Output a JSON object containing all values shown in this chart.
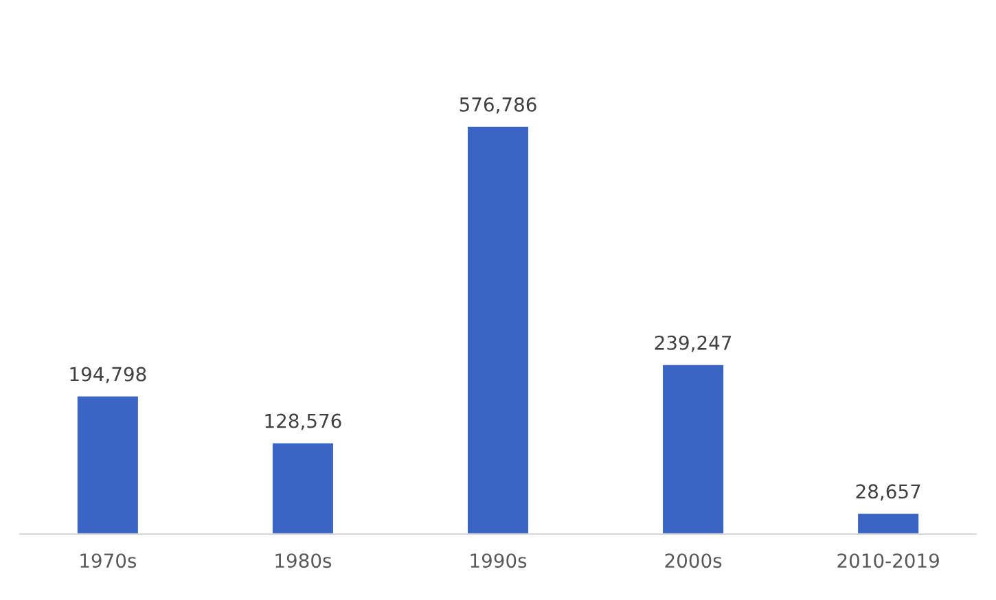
{
  "chart_data": {
    "type": "bar",
    "categories": [
      "1970s",
      "1980s",
      "1990s",
      "2000s",
      "2010-2019"
    ],
    "values": [
      194798,
      128576,
      576786,
      239247,
      28657
    ],
    "value_labels": [
      "194,798",
      "128,576",
      "576,786",
      "239,247",
      "28,657"
    ],
    "color": "#3a65c4",
    "grid": false,
    "legend": false
  }
}
